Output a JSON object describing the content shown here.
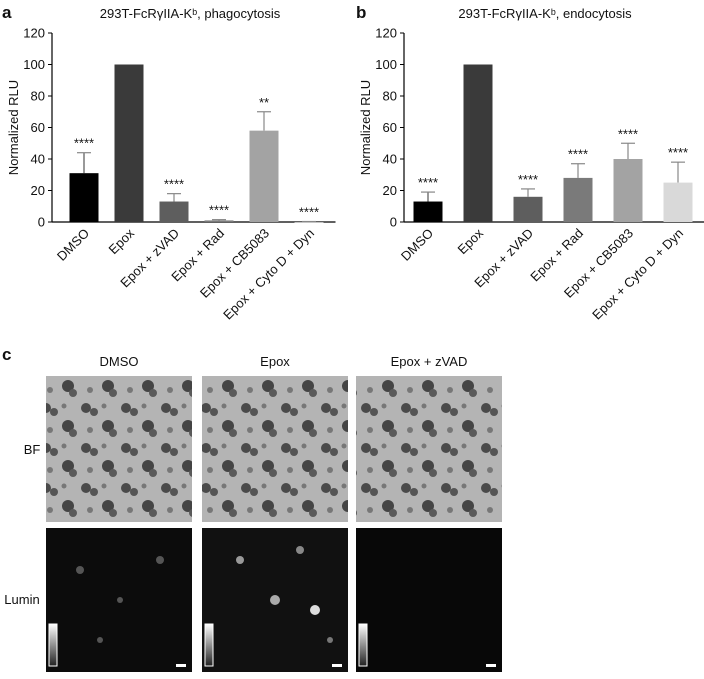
{
  "chart_data": [
    {
      "type": "bar",
      "panel_label": "a",
      "title": "293T-FcRγIIA-Kᵇ, phagocytosis",
      "y_label": "Normalized RLU",
      "categories": [
        "DMSO",
        "Epox",
        "Epox + zVAD",
        "Epox + Rad",
        "Epox + CB5083",
        "Epox + Cyto D + Dyn"
      ],
      "values": [
        31,
        100,
        13,
        1,
        58,
        0
      ],
      "errors": [
        13,
        0,
        5,
        0.5,
        12,
        0.3
      ],
      "annotations": [
        "****",
        null,
        "****",
        "****",
        "**",
        "****"
      ],
      "colors": [
        "#000000",
        "#3a3a3a",
        "#5e5e5e",
        "#7a7a7a",
        "#a3a3a3",
        "#c8c8c8"
      ],
      "ylim": [
        0,
        120
      ],
      "yticks": [
        0,
        20,
        40,
        60,
        80,
        100,
        120
      ]
    },
    {
      "type": "bar",
      "panel_label": "b",
      "title": "293T-FcRγIIA-Kᵇ, endocytosis",
      "y_label": "Normalized RLU",
      "categories": [
        "DMSO",
        "Epox",
        "Epox + zVAD",
        "Epox + Rad",
        "Epox + CB5083",
        "Epox + Cyto D + Dyn"
      ],
      "values": [
        13,
        100,
        16,
        28,
        40,
        25
      ],
      "errors": [
        6,
        0,
        5,
        9,
        10,
        13
      ],
      "annotations": [
        "****",
        null,
        "****",
        "****",
        "****",
        "****"
      ],
      "colors": [
        "#000000",
        "#3a3a3a",
        "#5e5e5e",
        "#7a7a7a",
        "#a3a3a3",
        "#d9d9d9"
      ],
      "ylim": [
        0,
        120
      ],
      "yticks": [
        0,
        20,
        40,
        60,
        80,
        100,
        120
      ]
    }
  ],
  "panel_c": {
    "label": "c",
    "columns": [
      "DMSO",
      "Epox",
      "Epox + zVAD"
    ],
    "rows": [
      "BF",
      "Lumin"
    ]
  }
}
